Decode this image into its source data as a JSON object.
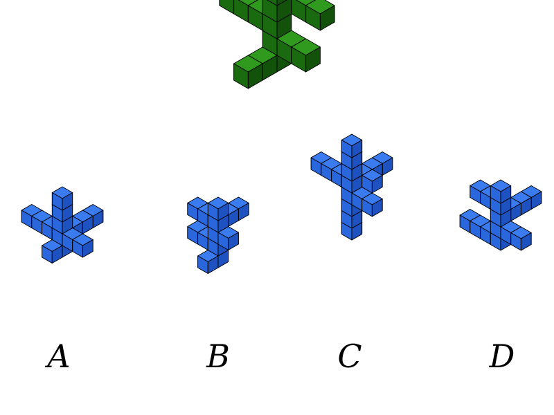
{
  "question_figure": {
    "color": "#1f7a12",
    "top_color": "#2f9a1e",
    "left_color": "#1a6a10",
    "right_color": "#13520b"
  },
  "options": [
    {
      "label": "A",
      "color": "#2266e8"
    },
    {
      "label": "B",
      "color": "#2266e8"
    },
    {
      "label": "C",
      "color": "#2266e8"
    },
    {
      "label": "D",
      "color": "#2266e8"
    }
  ],
  "option_colors": {
    "top": "#3a7cf0",
    "left": "#2a66dc",
    "right": "#1d52c0"
  }
}
